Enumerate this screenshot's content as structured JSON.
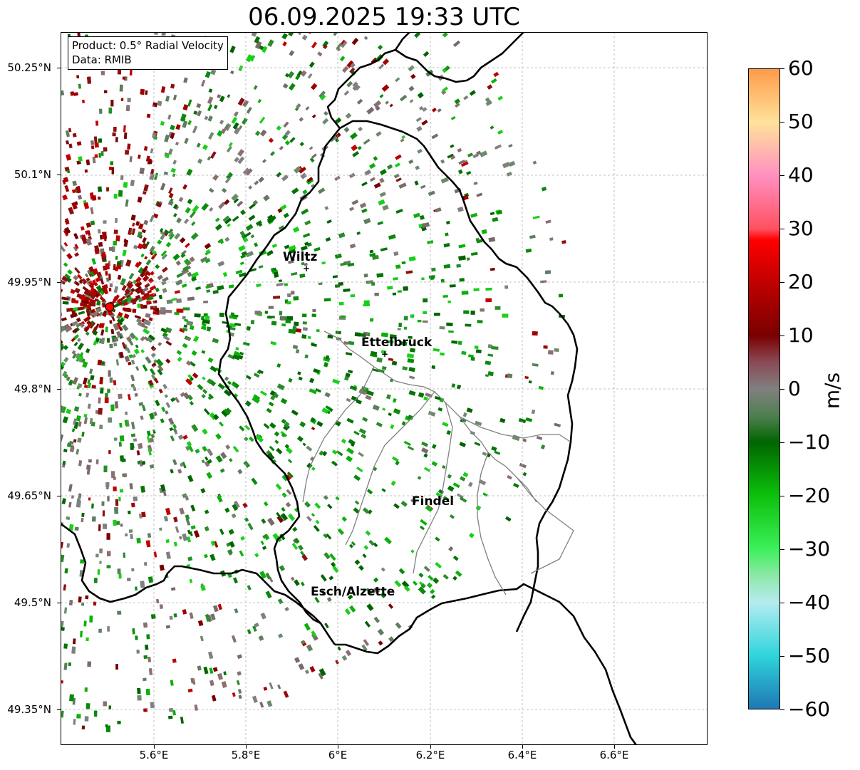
{
  "title": "06.09.2025 19:33 UTC",
  "product_box": {
    "product": "Product: 0.5° Radial Velocity",
    "data": "Data: RMIB"
  },
  "latitudes": [
    "50.25°N",
    "50.1°N",
    "49.95°N",
    "49.8°N",
    "49.65°N",
    "49.5°N",
    "49.35°N"
  ],
  "longitudes": [
    "5.6°E",
    "5.8°E",
    "6°E",
    "6.2°E",
    "6.4°E",
    "6.6°E"
  ],
  "cities": [
    {
      "name": "Wiltz"
    },
    {
      "name": "Ettelbruck"
    },
    {
      "name": "Findel"
    },
    {
      "name": "Esch/Alzette"
    }
  ],
  "colorbar": {
    "unit": "m/s",
    "ticks": [
      "60",
      "50",
      "40",
      "30",
      "20",
      "10",
      "0",
      "−10",
      "−20",
      "−30",
      "−40",
      "−50",
      "−60"
    ],
    "range": [
      -60,
      60
    ],
    "stops": [
      {
        "value": -60,
        "color": "#1f77b4"
      },
      {
        "value": -50,
        "color": "#2fd5dc"
      },
      {
        "value": -40,
        "color": "#b5ecf0"
      },
      {
        "value": -35,
        "color": "#8ce8a8"
      },
      {
        "value": -30,
        "color": "#3cf05a"
      },
      {
        "value": -20,
        "color": "#0cc00c"
      },
      {
        "value": -10,
        "color": "#006600"
      },
      {
        "value": -5,
        "color": "#4f7f50"
      },
      {
        "value": 0,
        "color": "#808080"
      },
      {
        "value": 5,
        "color": "#8a4a55"
      },
      {
        "value": 10,
        "color": "#7a0000"
      },
      {
        "value": 20,
        "color": "#c00000"
      },
      {
        "value": 28,
        "color": "#ff0000"
      },
      {
        "value": 30,
        "color": "#ff5060"
      },
      {
        "value": 40,
        "color": "#ff90c0"
      },
      {
        "value": 50,
        "color": "#ffe29a"
      },
      {
        "value": 60,
        "color": "#ff9a4a"
      }
    ]
  },
  "colors": {
    "border": "#000000",
    "canton_border": "#808080",
    "grid": "#b0b0b0",
    "radar_site": "#ff0000"
  }
}
